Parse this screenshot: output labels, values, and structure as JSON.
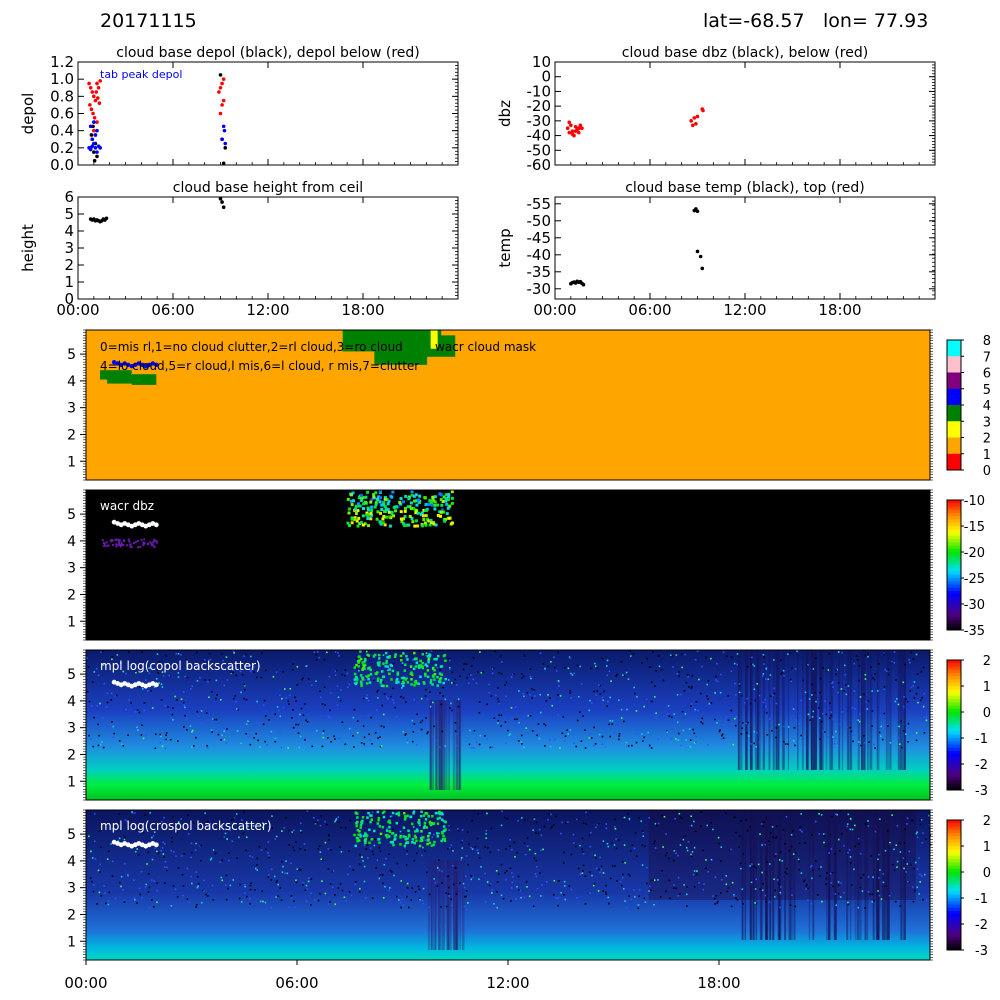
{
  "header": {
    "date": "20171115",
    "lat": "lat=-68.57",
    "lon": "lon= 77.93"
  },
  "chart_data": [
    {
      "id": "depol",
      "type": "scatter",
      "title": "cloud base depol (black), depol below (red)",
      "ylabel": "depol",
      "annotation": "tab peak depol",
      "ylim": [
        0,
        1.2
      ],
      "yticks": [
        "0.0",
        "0.2",
        "0.4",
        "0.6",
        "0.8",
        "1.0",
        "1.2"
      ],
      "xlim": [
        0,
        24
      ],
      "x_tick_values": [
        0,
        6,
        12,
        18
      ],
      "colors": {
        "base": "#000000",
        "below": "#ff0000",
        "peak": "#0000ff"
      },
      "series": [
        {
          "name": "cloud base depol",
          "color": "#000000",
          "x": [
            0.8,
            0.9,
            1.0,
            1.1,
            1.2,
            0.85,
            0.95,
            1.05,
            9.0,
            9.1,
            9.2,
            9.3
          ],
          "y": [
            0.2,
            0.3,
            0.15,
            0.25,
            0.1,
            0.35,
            0.45,
            0.05,
            1.05,
            0.3,
            0.02,
            0.2
          ]
        },
        {
          "name": "depol below",
          "color": "#ff0000",
          "x": [
            0.7,
            0.8,
            0.9,
            1.0,
            1.1,
            1.2,
            1.3,
            1.4,
            0.75,
            0.85,
            0.95,
            1.05,
            1.15,
            1.25,
            1.35,
            0.8,
            1.0,
            1.2,
            0.9,
            1.1,
            8.9,
            9.0,
            9.1,
            9.2,
            9.0,
            9.1,
            9.2
          ],
          "y": [
            0.95,
            0.9,
            0.85,
            0.8,
            0.75,
            0.95,
            0.9,
            0.98,
            0.7,
            0.65,
            0.6,
            0.55,
            0.85,
            0.78,
            0.72,
            0.45,
            0.4,
            0.5,
            0.3,
            0.35,
            0.85,
            0.9,
            0.95,
            1.0,
            0.6,
            0.7,
            0.75
          ]
        },
        {
          "name": "tab peak depol",
          "color": "#0000ff",
          "x": [
            0.7,
            0.8,
            0.9,
            1.0,
            1.1,
            1.2,
            1.3,
            1.4,
            0.8,
            1.0,
            1.2,
            0.9,
            1.1,
            9.1,
            9.2,
            9.3,
            9.25
          ],
          "y": [
            0.2,
            0.18,
            0.22,
            0.25,
            0.2,
            0.15,
            0.22,
            0.2,
            0.45,
            0.5,
            0.4,
            0.3,
            0.35,
            0.3,
            0.45,
            0.25,
            0.4
          ]
        }
      ]
    },
    {
      "id": "dbz",
      "type": "scatter",
      "title": "cloud base dbz (black), below (red)",
      "ylabel": "dbz",
      "ylim": [
        -60,
        10
      ],
      "yticks": [
        "-60",
        "-50",
        "-40",
        "-30",
        "-20",
        "-10",
        "0",
        "10"
      ],
      "xlim": [
        0,
        24
      ],
      "x_tick_values": [
        0,
        6,
        12,
        18
      ],
      "series": [
        {
          "name": "below",
          "color": "#ff0000",
          "x": [
            0.8,
            0.9,
            1.0,
            1.1,
            1.2,
            1.3,
            1.4,
            1.5,
            1.6,
            1.7,
            0.9,
            1.1,
            1.3,
            1.5,
            8.6,
            8.7,
            8.8,
            8.9,
            9.0,
            9.3,
            9.35
          ],
          "y": [
            -35,
            -38,
            -33,
            -37,
            -40,
            -34,
            -36,
            -38,
            -33,
            -35,
            -31,
            -39,
            -37,
            -35,
            -30,
            -33,
            -28,
            -32,
            -27,
            -22,
            -23
          ]
        }
      ]
    },
    {
      "id": "height",
      "type": "scatter",
      "title": "cloud base height from ceil",
      "ylabel": "height",
      "ylim": [
        0,
        6
      ],
      "yticks": [
        "0",
        "1",
        "2",
        "3",
        "4",
        "5",
        "6"
      ],
      "xlim": [
        0,
        24
      ],
      "x_tick_values": [
        0,
        6,
        12,
        18
      ],
      "x_tick_labels": [
        "00:00",
        "06:00",
        "12:00",
        "18:00"
      ],
      "series": [
        {
          "name": "ceil",
          "color": "#000000",
          "x": [
            0.8,
            0.9,
            1.0,
            1.1,
            1.2,
            1.3,
            1.4,
            1.5,
            1.6,
            1.7,
            1.8,
            9.0,
            9.1,
            9.2
          ],
          "y": [
            4.7,
            4.65,
            4.7,
            4.6,
            4.65,
            4.6,
            4.55,
            4.6,
            4.7,
            4.65,
            4.75,
            5.9,
            5.7,
            5.4
          ]
        }
      ]
    },
    {
      "id": "temp",
      "type": "scatter",
      "title": "cloud base temp (black), top (red)",
      "ylabel": "temp",
      "ylim": [
        -27,
        -57
      ],
      "yticks": [
        "-30",
        "-35",
        "-40",
        "-45",
        "-50",
        "-55"
      ],
      "xlim": [
        0,
        24
      ],
      "x_tick_values": [
        0,
        6,
        12,
        18
      ],
      "x_tick_labels": [
        "00:00",
        "06:00",
        "12:00",
        "18:00"
      ],
      "series": [
        {
          "name": "base",
          "color": "#000000",
          "x": [
            1.0,
            1.1,
            1.2,
            1.3,
            1.4,
            1.5,
            1.6,
            1.7,
            1.8,
            8.8,
            8.9,
            9.0,
            9.0,
            9.2,
            9.3
          ],
          "y": [
            -31.5,
            -31.8,
            -32.0,
            -31.7,
            -32.2,
            -31.9,
            -32.1,
            -31.6,
            -31.2,
            -53.0,
            -53.5,
            -52.8,
            -41.0,
            -39.5,
            -36.0
          ]
        }
      ]
    },
    {
      "id": "mask",
      "type": "heatmap",
      "label": "wacr cloud mask",
      "legend_line1": "0=mis rl,1=no cloud clutter,2=rl cloud,3=ro cloud",
      "legend_line2": "4=lo cloud,5=r cloud,l mis,6=l cloud, r mis,7=clutter",
      "yticks": [
        "1",
        "2",
        "3",
        "4",
        "5"
      ],
      "ylim": [
        0.3,
        5.9
      ],
      "xlim": [
        0,
        24
      ],
      "colorbar": {
        "min": 0,
        "max": 8,
        "ticks": [
          "0",
          "1",
          "2",
          "3",
          "4",
          "5",
          "6",
          "7",
          "8"
        ],
        "colors": [
          "#ff0000",
          "#ffa500",
          "#ffff00",
          "#008000",
          "#0000ff",
          "#800080",
          "#ffc0cb",
          "#00ffff"
        ]
      },
      "background_class": 1
    },
    {
      "id": "wacr",
      "type": "heatmap",
      "label": "wacr dbz",
      "yticks": [
        "1",
        "2",
        "3",
        "4",
        "5"
      ],
      "ylim": [
        0.3,
        5.9
      ],
      "xlim": [
        0,
        24
      ],
      "colorbar": {
        "min": -35,
        "max": -10,
        "ticks": [
          "-35",
          "-30",
          "-25",
          "-20",
          "-15",
          "-10"
        ]
      }
    },
    {
      "id": "copol",
      "type": "heatmap",
      "label": "mpl log(copol backscatter)",
      "yticks": [
        "1",
        "2",
        "3",
        "4",
        "5"
      ],
      "ylim": [
        0.3,
        5.9
      ],
      "xlim": [
        0,
        24
      ],
      "colorbar": {
        "min": -3,
        "max": 2,
        "ticks": [
          "-3",
          "-2",
          "-1",
          "0",
          "1",
          "2"
        ]
      }
    },
    {
      "id": "crospol",
      "type": "heatmap",
      "label": "mpl log(crospol backscatter)",
      "yticks": [
        "1",
        "2",
        "3",
        "4",
        "5"
      ],
      "ylim": [
        0.3,
        5.9
      ],
      "xlim": [
        0,
        24
      ],
      "x_tick_values": [
        0,
        6,
        12,
        18
      ],
      "x_tick_labels": [
        "00:00",
        "06:00",
        "12:00",
        "18:00"
      ],
      "colorbar": {
        "min": -3,
        "max": 2,
        "ticks": [
          "-3",
          "-2",
          "-1",
          "0",
          "1",
          "2"
        ]
      }
    }
  ],
  "ceil_trace": {
    "x": [
      0.8,
      0.9,
      1.0,
      1.1,
      1.2,
      1.3,
      1.4,
      1.5,
      1.6,
      1.7,
      1.8,
      1.9,
      2.0
    ],
    "y": [
      4.7,
      4.65,
      4.6,
      4.65,
      4.6,
      4.55,
      4.6,
      4.65,
      4.6,
      4.55,
      4.6,
      4.65,
      4.6
    ]
  }
}
